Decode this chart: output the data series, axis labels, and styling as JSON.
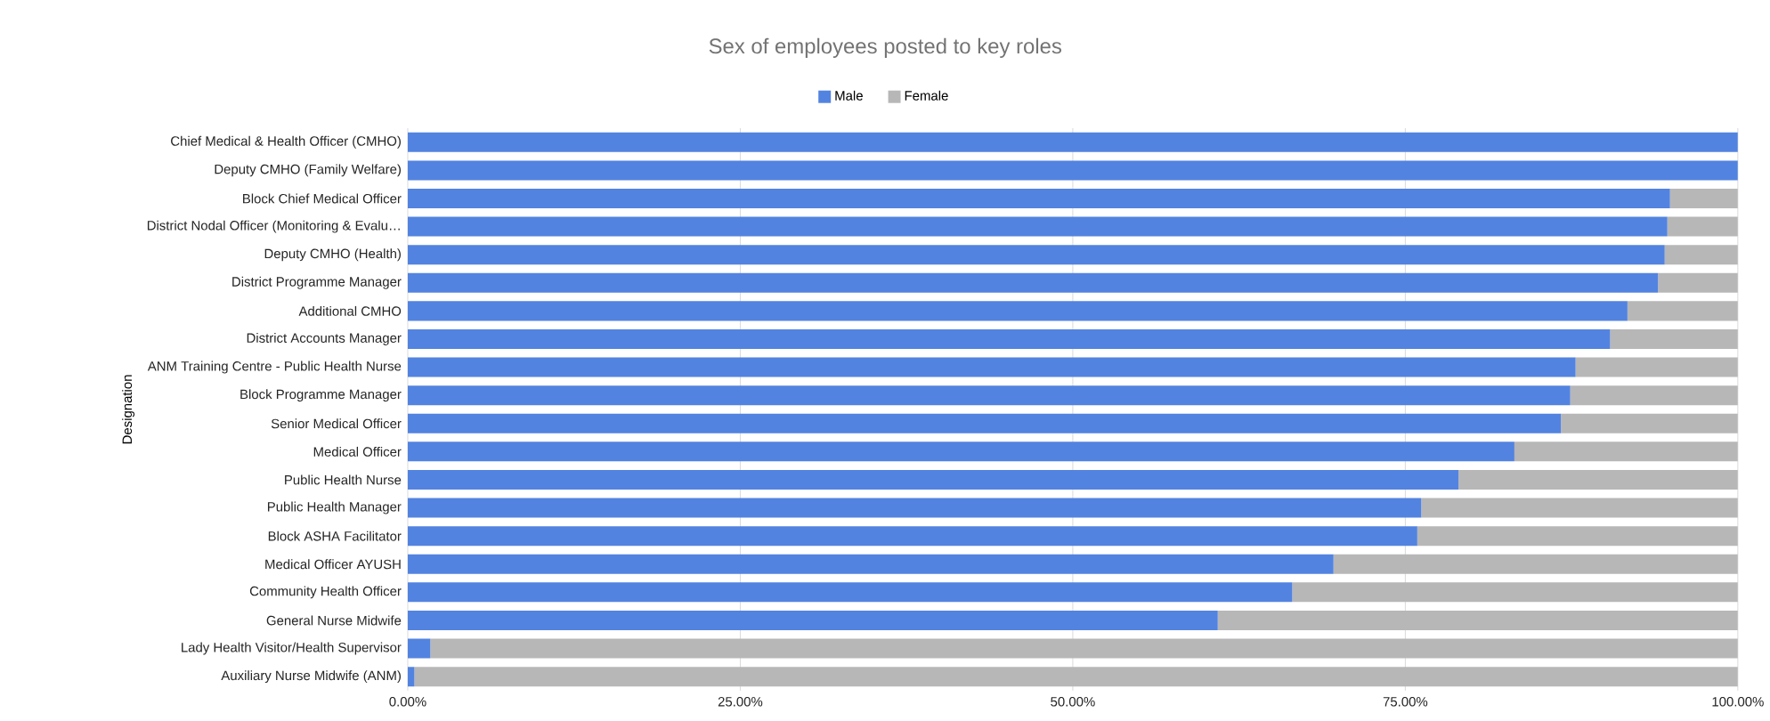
{
  "chart_data": {
    "type": "bar",
    "orientation": "horizontal",
    "stacked": true,
    "title": "Sex of employees posted to key roles",
    "ylabel": "Designation",
    "categories": [
      "Chief Medical & Health Officer (CMHO)",
      "Deputy CMHO (Family Welfare)",
      "Block Chief Medical Officer",
      "District Nodal Officer (Monitoring & Evalu…",
      "Deputy CMHO (Health)",
      "District Programme Manager",
      "Additional CMHO",
      "District Accounts Manager",
      "ANM Training Centre -  Public Health Nurse",
      "Block Programme Manager",
      "Senior Medical Officer",
      "Medical Officer",
      "Public Health Nurse",
      "Public Health Manager",
      "Block ASHA Facilitator",
      "Medical Officer AYUSH",
      "Community Health Officer",
      "General Nurse Midwife",
      "Lady Health Visitor/Health Supervisor",
      "Auxiliary Nurse Midwife (ANM)"
    ],
    "series": [
      {
        "name": "Male",
        "color": "#5383e0",
        "values": [
          100,
          100,
          94.9,
          94.7,
          94.5,
          94.0,
          91.7,
          90.4,
          87.8,
          87.4,
          86.7,
          83.2,
          79.0,
          76.2,
          75.9,
          69.6,
          66.5,
          60.9,
          1.7,
          0.5
        ]
      },
      {
        "name": "Female",
        "color": "#b7b7b7",
        "values": [
          0,
          0,
          5.1,
          5.3,
          5.5,
          6.0,
          8.3,
          9.6,
          12.2,
          12.6,
          13.3,
          16.8,
          21.0,
          23.8,
          24.1,
          30.4,
          33.5,
          39.1,
          98.3,
          99.5
        ]
      }
    ],
    "xlim": [
      0,
      100
    ],
    "xticks": [
      {
        "value": 0,
        "label": "0.00%"
      },
      {
        "value": 25,
        "label": "25.00%"
      },
      {
        "value": 50,
        "label": "50.00%"
      },
      {
        "value": 75,
        "label": "75.00%"
      },
      {
        "value": 100,
        "label": "100.00%"
      }
    ],
    "grid": "x",
    "legend": "top"
  }
}
